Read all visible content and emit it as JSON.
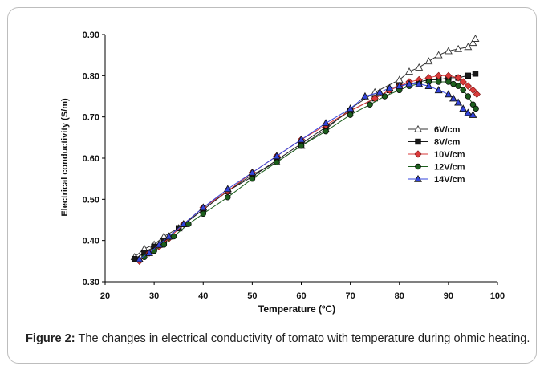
{
  "chart_data": {
    "type": "line",
    "xlabel": "Temperature (ºC)",
    "ylabel": "Electrical conductivity (S/m)",
    "xlim": [
      20,
      100
    ],
    "ylim": [
      0.3,
      0.9
    ],
    "xticks": [
      "20",
      "30",
      "40",
      "50",
      "60",
      "70",
      "80",
      "90",
      "100"
    ],
    "yticks": [
      "0.30",
      "0.40",
      "0.50",
      "0.60",
      "0.70",
      "0.80",
      "0.90"
    ],
    "grid": false,
    "legend_position": "right-middle",
    "series": [
      {
        "name": "6V/cm",
        "marker": "triangle-open",
        "color": "#333333",
        "x": [
          26,
          28,
          30,
          32,
          35,
          40,
          45,
          50,
          55,
          60,
          65,
          70,
          75,
          80,
          82,
          84,
          86,
          88,
          90,
          92,
          94,
          95,
          95.5
        ],
        "y": [
          0.36,
          0.38,
          0.39,
          0.41,
          0.43,
          0.48,
          0.52,
          0.56,
          0.59,
          0.63,
          0.67,
          0.72,
          0.76,
          0.79,
          0.81,
          0.82,
          0.835,
          0.85,
          0.86,
          0.865,
          0.87,
          0.88,
          0.89
        ]
      },
      {
        "name": "8V/cm",
        "marker": "square",
        "color": "#1a1a1a",
        "x": [
          26,
          28,
          30,
          32,
          35,
          40,
          45,
          50,
          55,
          60,
          65,
          70,
          75,
          78,
          80,
          82,
          84,
          86,
          88,
          90,
          92,
          94,
          95.5
        ],
        "y": [
          0.355,
          0.37,
          0.385,
          0.4,
          0.43,
          0.475,
          0.52,
          0.555,
          0.595,
          0.635,
          0.675,
          0.715,
          0.745,
          0.765,
          0.775,
          0.78,
          0.785,
          0.79,
          0.79,
          0.795,
          0.795,
          0.8,
          0.805
        ]
      },
      {
        "name": "10V/cm",
        "marker": "diamond",
        "color": "#d93a3a",
        "x": [
          27,
          29,
          31,
          33,
          36,
          40,
          45,
          50,
          55,
          60,
          65,
          70,
          75,
          78,
          80,
          82,
          84,
          86,
          88,
          90,
          92,
          93,
          94,
          95,
          95.8
        ],
        "y": [
          0.35,
          0.37,
          0.385,
          0.405,
          0.44,
          0.48,
          0.52,
          0.565,
          0.605,
          0.645,
          0.68,
          0.715,
          0.745,
          0.765,
          0.775,
          0.785,
          0.79,
          0.795,
          0.8,
          0.8,
          0.795,
          0.785,
          0.775,
          0.765,
          0.755
        ]
      },
      {
        "name": "12V/cm",
        "marker": "circle",
        "color": "#1c5e1c",
        "x": [
          28,
          30,
          32,
          34,
          37,
          40,
          45,
          50,
          55,
          60,
          65,
          70,
          74,
          77,
          80,
          82,
          84,
          86,
          88,
          90,
          91,
          92,
          93,
          94,
          95,
          95.6
        ],
        "y": [
          0.36,
          0.375,
          0.39,
          0.41,
          0.44,
          0.465,
          0.505,
          0.55,
          0.59,
          0.63,
          0.665,
          0.705,
          0.73,
          0.75,
          0.765,
          0.775,
          0.78,
          0.785,
          0.785,
          0.785,
          0.78,
          0.775,
          0.765,
          0.75,
          0.73,
          0.72
        ]
      },
      {
        "name": "14V/cm",
        "marker": "triangle",
        "color": "#3344dd",
        "x": [
          27,
          29,
          31,
          33,
          36,
          40,
          45,
          50,
          55,
          60,
          65,
          70,
          73,
          76,
          78,
          80,
          82,
          84,
          86,
          88,
          90,
          91,
          92,
          93,
          94,
          95
        ],
        "y": [
          0.355,
          0.37,
          0.39,
          0.41,
          0.44,
          0.48,
          0.525,
          0.565,
          0.605,
          0.645,
          0.685,
          0.72,
          0.75,
          0.76,
          0.77,
          0.775,
          0.78,
          0.78,
          0.775,
          0.765,
          0.755,
          0.745,
          0.735,
          0.72,
          0.71,
          0.705
        ]
      }
    ]
  },
  "caption": {
    "label": "Figure 2:",
    "text": " The changes in electrical conductivity of tomato with temperature during ohmic heating."
  }
}
